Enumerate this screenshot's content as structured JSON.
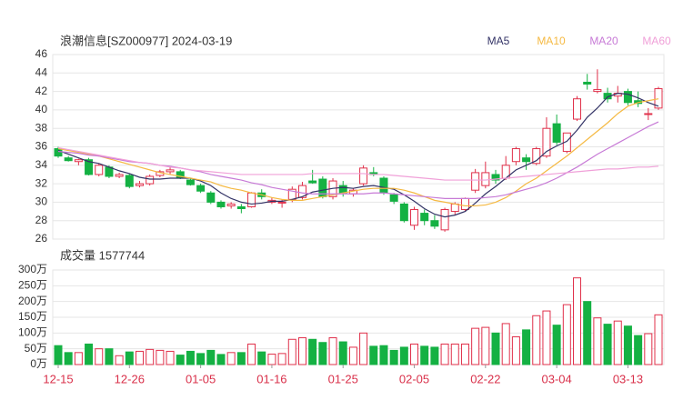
{
  "chart_data": [
    {
      "type": "candlestick",
      "title": "浪潮信息[SZ000977] 2024-03-19",
      "open": [
        35.8,
        34.8,
        34.4,
        34.6,
        33.0,
        33.8,
        32.8,
        32.9,
        31.8,
        32.0,
        32.9,
        33.3,
        33.3,
        32.4,
        31.8,
        31.0,
        30.0,
        29.6,
        29.5,
        29.5,
        31.0,
        30.0,
        29.9,
        30.3,
        30.5,
        32.3,
        32.5,
        30.6,
        31.8,
        30.9,
        32.0,
        33.2,
        32.6,
        30.8,
        29.8,
        27.5,
        28.8,
        28.0,
        27.0,
        29.0,
        29.2,
        31.3,
        31.8,
        33.0,
        32.6,
        34.4,
        34.8,
        34.2,
        35.0,
        38.5,
        35.5,
        39.0,
        43.0,
        42.0,
        41.8,
        41.5,
        42.0,
        41.0,
        39.5,
        40.2
      ],
      "high": [
        36.0,
        35.0,
        34.7,
        34.8,
        34.2,
        34.0,
        33.2,
        33.1,
        32.3,
        33.0,
        33.5,
        33.8,
        33.5,
        32.6,
        32.0,
        31.2,
        30.2,
        30.0,
        29.8,
        31.1,
        31.4,
        30.5,
        30.3,
        31.7,
        32.2,
        33.5,
        32.8,
        32.6,
        32.3,
        31.5,
        34.0,
        33.8,
        32.8,
        31.0,
        30.0,
        29.5,
        29.2,
        28.6,
        29.4,
        30.0,
        30.5,
        33.6,
        34.4,
        33.5,
        35.0,
        36.0,
        35.2,
        36.0,
        39.2,
        39.5,
        37.5,
        41.5,
        43.9,
        44.4,
        42.4,
        42.6,
        42.3,
        42.0,
        40.2,
        42.5
      ],
      "low": [
        34.8,
        34.4,
        34.0,
        32.9,
        32.8,
        32.6,
        32.6,
        31.5,
        31.6,
        31.8,
        32.7,
        33.0,
        32.5,
        31.8,
        31.0,
        29.8,
        29.3,
        29.3,
        28.8,
        29.4,
        30.3,
        29.8,
        29.4,
        30.0,
        30.3,
        32.0,
        30.4,
        30.3,
        30.6,
        30.6,
        31.8,
        32.8,
        30.8,
        29.8,
        27.8,
        27.0,
        27.5,
        27.1,
        26.8,
        28.6,
        29.0,
        31.0,
        31.5,
        32.0,
        32.4,
        34.0,
        33.5,
        34.0,
        34.8,
        36.2,
        35.3,
        38.8,
        42.2,
        41.8,
        40.8,
        40.8,
        40.5,
        40.3,
        38.9,
        40.0
      ],
      "close": [
        35.0,
        34.5,
        34.6,
        33.0,
        34.0,
        32.8,
        33.0,
        31.7,
        32.0,
        32.8,
        33.3,
        33.5,
        32.6,
        31.9,
        31.2,
        30.0,
        29.5,
        29.8,
        29.3,
        31.0,
        30.6,
        30.2,
        30.0,
        31.4,
        31.8,
        32.1,
        30.6,
        32.3,
        31.0,
        31.3,
        33.7,
        33.0,
        31.0,
        30.1,
        28.0,
        29.2,
        28.0,
        27.4,
        29.2,
        29.8,
        30.4,
        33.2,
        33.2,
        32.4,
        34.0,
        35.8,
        34.4,
        35.8,
        38.0,
        36.5,
        37.5,
        41.2,
        42.8,
        42.2,
        41.2,
        41.8,
        40.8,
        40.7,
        39.6,
        42.3
      ],
      "up_color": "#e0304a",
      "down_color": "#14b143",
      "series": [
        {
          "name": "MA5",
          "color": "#333366",
          "values": [
            35.6,
            35.2,
            34.8,
            34.4,
            34.2,
            33.8,
            33.4,
            33.1,
            32.7,
            32.5,
            32.5,
            32.6,
            32.6,
            32.6,
            32.3,
            31.8,
            31.0,
            30.4,
            30.0,
            29.8,
            29.9,
            30.1,
            30.1,
            30.3,
            30.6,
            31.1,
            31.3,
            31.5,
            31.6,
            31.5,
            31.7,
            31.8,
            31.6,
            31.4,
            30.8,
            30.1,
            29.3,
            28.7,
            28.4,
            28.6,
            29.0,
            29.9,
            30.9,
            31.7,
            32.6,
            33.5,
            34.0,
            34.5,
            35.5,
            36.1,
            36.6,
            37.8,
            39.2,
            40.2,
            41.4,
            41.8,
            41.7,
            41.3,
            40.8,
            40.4
          ]
        },
        {
          "name": "MA10",
          "color": "#f5b942",
          "values": [
            35.8,
            35.6,
            35.4,
            35.2,
            35.0,
            34.7,
            34.4,
            34.1,
            33.8,
            33.5,
            33.2,
            33.0,
            32.8,
            32.6,
            32.4,
            32.2,
            31.8,
            31.5,
            31.3,
            31.0,
            30.8,
            30.5,
            30.3,
            30.2,
            30.2,
            30.4,
            30.6,
            30.8,
            31.0,
            31.2,
            31.4,
            31.5,
            31.5,
            31.5,
            31.3,
            31.0,
            30.6,
            30.2,
            30.0,
            29.8,
            29.6,
            29.6,
            29.7,
            30.0,
            30.5,
            31.2,
            32.0,
            32.6,
            33.4,
            34.2,
            35.0,
            35.9,
            36.8,
            37.7,
            38.6,
            39.6,
            40.4,
            40.8,
            41.0,
            41.2
          ]
        },
        {
          "name": "MA20",
          "color": "#c77ad6",
          "values": [
            35.5,
            35.4,
            35.3,
            35.1,
            35.0,
            34.8,
            34.6,
            34.4,
            34.3,
            34.2,
            34.0,
            33.9,
            33.7,
            33.5,
            33.3,
            33.0,
            32.8,
            32.6,
            32.4,
            32.1,
            31.9,
            31.6,
            31.4,
            31.2,
            31.0,
            30.9,
            30.9,
            30.9,
            30.9,
            30.9,
            30.9,
            31.0,
            31.0,
            30.9,
            30.8,
            30.7,
            30.6,
            30.5,
            30.4,
            30.4,
            30.4,
            30.4,
            30.5,
            30.6,
            30.8,
            31.1,
            31.4,
            31.7,
            32.1,
            32.6,
            33.2,
            33.8,
            34.5,
            35.2,
            35.8,
            36.4,
            37.0,
            37.6,
            38.2,
            38.7
          ]
        },
        {
          "name": "MA60",
          "color": "#f0a0d8",
          "values": [
            35.9,
            35.7,
            35.5,
            35.3,
            35.1,
            34.9,
            34.7,
            34.5,
            34.3,
            34.2,
            34.0,
            33.8,
            33.7,
            33.5,
            33.4,
            33.3,
            33.2,
            33.1,
            33.0,
            33.0,
            33.0,
            33.0,
            33.0,
            33.0,
            33.0,
            33.1,
            33.1,
            33.1,
            33.1,
            33.1,
            33.1,
            33.0,
            33.0,
            32.9,
            32.8,
            32.7,
            32.6,
            32.5,
            32.4,
            32.4,
            32.4,
            32.4,
            32.4,
            32.5,
            32.6,
            32.7,
            32.8,
            32.9,
            33.0,
            33.1,
            33.2,
            33.3,
            33.4,
            33.5,
            33.6,
            33.6,
            33.7,
            33.8,
            33.8,
            33.9
          ]
        }
      ],
      "ylim": [
        26,
        46
      ],
      "yticks": [
        26,
        28,
        30,
        32,
        34,
        36,
        38,
        40,
        42,
        44,
        46
      ],
      "grid": true
    },
    {
      "type": "bar",
      "title": "成交量 1577744",
      "categories": [
        "12-15",
        null,
        null,
        null,
        null,
        null,
        null,
        "12-26",
        null,
        null,
        null,
        null,
        null,
        null,
        "01-05",
        null,
        null,
        null,
        null,
        null,
        null,
        "01-16",
        null,
        null,
        null,
        null,
        null,
        null,
        "01-25",
        null,
        null,
        null,
        null,
        null,
        null,
        "02-05",
        null,
        null,
        null,
        null,
        null,
        null,
        "02-22",
        null,
        null,
        null,
        null,
        null,
        null,
        "03-04",
        null,
        null,
        null,
        null,
        null,
        null,
        "03-13",
        null,
        null,
        null
      ],
      "values": [
        60,
        38,
        38,
        65,
        50,
        50,
        28,
        40,
        42,
        48,
        45,
        42,
        30,
        42,
        35,
        45,
        32,
        38,
        38,
        65,
        40,
        33,
        35,
        80,
        85,
        80,
        70,
        85,
        72,
        55,
        100,
        58,
        60,
        45,
        55,
        65,
        58,
        55,
        65,
        65,
        65,
        115,
        118,
        100,
        130,
        88,
        110,
        155,
        170,
        125,
        190,
        275,
        200,
        148,
        128,
        138,
        122,
        92,
        98,
        157.7744
      ],
      "ylim": [
        0,
        300
      ],
      "yticks": [
        {
          "value": 0,
          "label": "0万"
        },
        {
          "value": 50,
          "label": "50万"
        },
        {
          "value": 100,
          "label": "100万"
        },
        {
          "value": 150,
          "label": "150万"
        },
        {
          "value": 200,
          "label": "200万"
        },
        {
          "value": 250,
          "label": "250万"
        },
        {
          "value": 300,
          "label": "300万"
        }
      ],
      "grid": true
    }
  ]
}
